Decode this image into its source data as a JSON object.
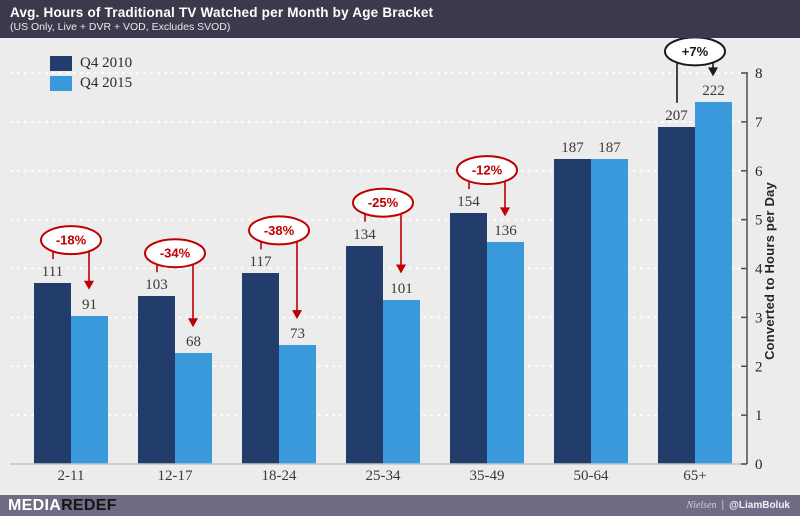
{
  "header": {
    "title": "Avg. Hours of Traditional TV Watched per Month by Age Bracket",
    "subtitle": "(US Only, Live + DVR + VOD, Excludes SVOD)"
  },
  "chart_data": {
    "type": "bar",
    "title": "Avg. Hours of Traditional TV Watched per Month by Age Bracket",
    "subtitle": "(US Only, Live + DVR + VOD, Excludes SVOD)",
    "categories": [
      "2-11",
      "12-17",
      "18-24",
      "25-34",
      "35-49",
      "50-64",
      "65+"
    ],
    "series": [
      {
        "name": "Q4 2010",
        "color": "#223D6B",
        "values": [
          111,
          103,
          117,
          134,
          154,
          187,
          207
        ]
      },
      {
        "name": "Q4 2015",
        "color": "#3999DA",
        "values": [
          91,
          68,
          73,
          101,
          136,
          187,
          222
        ]
      }
    ],
    "pct_change_annotations": [
      {
        "category": "2-11",
        "label": "-18%",
        "color": "#C00000"
      },
      {
        "category": "12-17",
        "label": "-34%",
        "color": "#C00000"
      },
      {
        "category": "18-24",
        "label": "-38%",
        "color": "#C00000"
      },
      {
        "category": "25-34",
        "label": "-25%",
        "color": "#C00000"
      },
      {
        "category": "35-49",
        "label": "-12%",
        "color": "#C00000"
      },
      {
        "category": "65+",
        "label": "+7%",
        "color": "#1A1A1A",
        "lift": 51
      }
    ],
    "y2label": "Converted to Hours per Day",
    "y2ticks": [
      0,
      1,
      2,
      3,
      4,
      5,
      6,
      7,
      8
    ],
    "y2lim": [
      0,
      8
    ],
    "month_to_day_divisor": 30,
    "grid": "horizontal white dashed",
    "legend_position": "top-left"
  },
  "footer": {
    "brand_media": "MEDIA",
    "brand_redef": "REDEF",
    "source": "Nielsen",
    "separator": "|",
    "handle": "@LiamBoluk"
  },
  "colors": {
    "header_bg": "#3B3A4C",
    "chart_bg": "#ECECEC",
    "footer_bg": "#6E6D85",
    "gridline": "#FFFFFF",
    "axis": "#4D4D4D",
    "baseline": "#C4C4C4",
    "value_label": "#3A3A3A",
    "annotation_negative": "#C00000",
    "annotation_positive": "#1A1A1A"
  }
}
